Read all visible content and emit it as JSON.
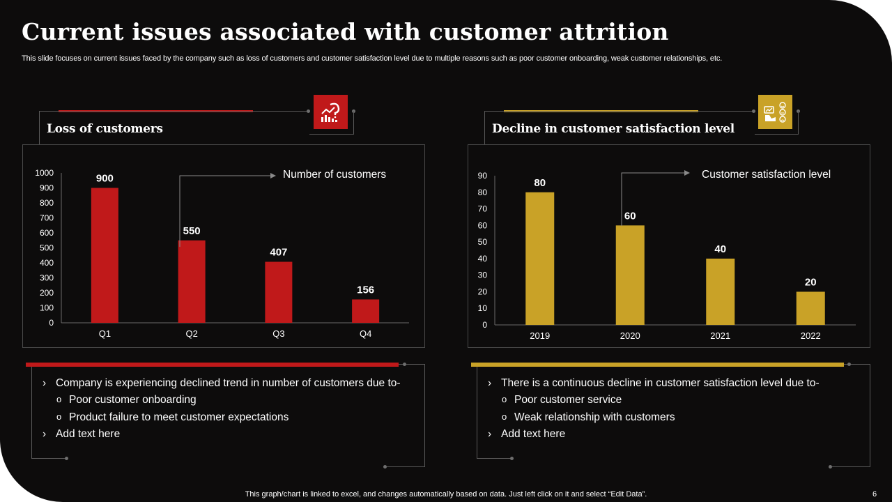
{
  "slide": {
    "title": "Current issues associated with customer attrition",
    "subtitle": "This slide focuses on current issues faced by the company such as loss of customers and customer satisfaction level due to multiple reasons such as poor customer onboarding, weak customer relationships, etc.",
    "footer": "This graph/chart is linked to excel,  and changes automatically based on data. Just left click on it and select “Edit Data”.",
    "page_number": "6"
  },
  "colors": {
    "background": "#0d0c0c",
    "accent_red": "#c0191a",
    "accent_gold": "#c9a227"
  },
  "left_panel": {
    "heading": "Loss of customers",
    "icon": "declining-chart-icon",
    "bullets": [
      {
        "type": "arrow",
        "text": "Company is experiencing declined trend in number of customers due to-"
      },
      {
        "type": "circle",
        "text": "Poor customer onboarding"
      },
      {
        "type": "circle",
        "text": "Product failure to meet customer expectations"
      },
      {
        "type": "arrow",
        "text": "Add text here"
      }
    ]
  },
  "right_panel": {
    "heading": "Decline in customer satisfaction level",
    "icon": "customer-feedback-icon",
    "bullets": [
      {
        "type": "arrow",
        "text": "There is a continuous  decline in customer satisfaction level due to-"
      },
      {
        "type": "circle",
        "text": "Poor customer service"
      },
      {
        "type": "circle",
        "text": "Weak relationship with customers"
      },
      {
        "type": "arrow",
        "text": "Add text here"
      }
    ]
  },
  "chart_data": [
    {
      "type": "bar",
      "title": "",
      "annotation": "Number of customers",
      "categories": [
        "Q1",
        "Q2",
        "Q3",
        "Q4"
      ],
      "values": [
        900,
        550,
        407,
        156
      ],
      "yticks": [
        "0",
        "100",
        "200",
        "300",
        "400",
        "500",
        "600",
        "700",
        "800",
        "900",
        "1000"
      ],
      "ylim": [
        0,
        1000
      ],
      "xlabel": "",
      "ylabel": "",
      "color": "#c0191a",
      "grid": false
    },
    {
      "type": "bar",
      "title": "",
      "annotation": "Customer satisfaction level",
      "categories": [
        "2019",
        "2020",
        "2021",
        "2022"
      ],
      "values": [
        80,
        60,
        40,
        20
      ],
      "yticks": [
        "0",
        "10",
        "20",
        "30",
        "40",
        "50",
        "60",
        "70",
        "80",
        "90"
      ],
      "ylim": [
        0,
        90
      ],
      "xlabel": "",
      "ylabel": "",
      "color": "#c9a227",
      "grid": false
    }
  ]
}
